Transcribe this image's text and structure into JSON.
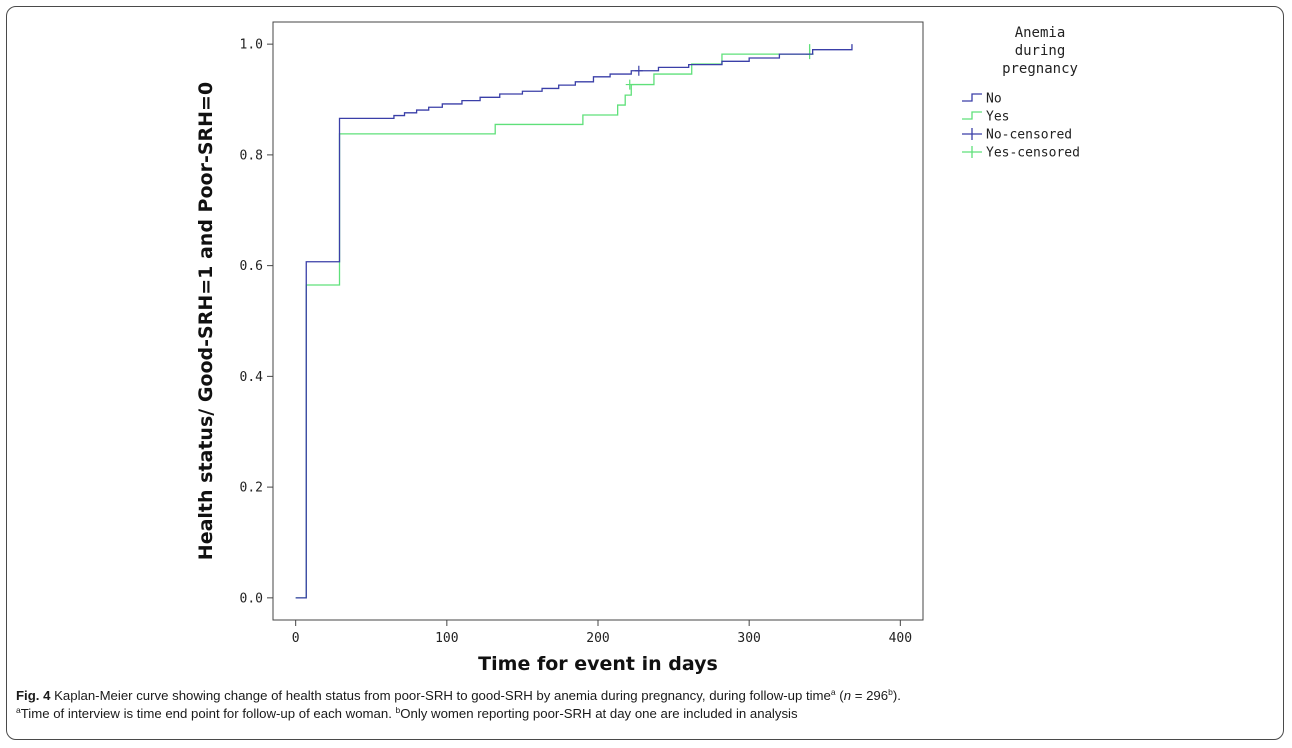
{
  "chart_data": {
    "type": "line",
    "subtype": "kaplan-meier step",
    "xlabel": "Time for event in days",
    "ylabel": "Health status/ Good-SRH=1 and Poor-SRH=0",
    "xlim": [
      -15,
      415
    ],
    "ylim": [
      -0.04,
      1.04
    ],
    "xticks": [
      0,
      100,
      200,
      300,
      400
    ],
    "yticks": [
      0.0,
      0.2,
      0.4,
      0.6,
      0.8,
      1.0
    ],
    "xtick_labels": [
      "0",
      "100",
      "200",
      "300",
      "400"
    ],
    "ytick_labels": [
      "0.0",
      "0.2",
      "0.4",
      "0.6",
      "0.8",
      "1.0"
    ],
    "legend": {
      "title": [
        "Anemia",
        "during",
        "pregnancy"
      ],
      "placement": "top-right outside plot",
      "entries": [
        {
          "label": "No",
          "kind": "line",
          "color": "#3a3fa8"
        },
        {
          "label": "Yes",
          "kind": "line",
          "color": "#5fe07a"
        },
        {
          "label": "No-censored",
          "kind": "censor",
          "color": "#3a3fa8"
        },
        {
          "label": "Yes-censored",
          "kind": "censor",
          "color": "#5fe07a"
        }
      ]
    },
    "series": [
      {
        "name": "No",
        "color": "#3a3fa8",
        "x": [
          0,
          7,
          29,
          65,
          72,
          80,
          88,
          97,
          110,
          122,
          135,
          150,
          163,
          174,
          185,
          197,
          208,
          222,
          240,
          260,
          282,
          300,
          320,
          342,
          368
        ],
        "y": [
          0.0,
          0.607,
          0.866,
          0.871,
          0.876,
          0.881,
          0.886,
          0.892,
          0.898,
          0.904,
          0.91,
          0.915,
          0.92,
          0.926,
          0.932,
          0.941,
          0.946,
          0.952,
          0.958,
          0.963,
          0.969,
          0.975,
          0.982,
          0.99,
          1.0
        ],
        "censored": [
          [
            227,
            0.952
          ]
        ]
      },
      {
        "name": "Yes",
        "color": "#5fe07a",
        "x": [
          0,
          7,
          29,
          132,
          190,
          213,
          218,
          222,
          237,
          262,
          282,
          340
        ],
        "y": [
          0.0,
          0.565,
          0.838,
          0.855,
          0.872,
          0.89,
          0.908,
          0.927,
          0.946,
          0.964,
          0.982,
          1.0
        ],
        "censored": [
          [
            221,
            0.927
          ],
          [
            340,
            0.982
          ]
        ]
      }
    ]
  },
  "caption": {
    "label": "Fig. 4",
    "text1": "Kaplan-Meier curve showing change of health status from poor-SRH to good-SRH by anemia during pregnancy, during follow-up time",
    "sup_a": "a",
    "text2": "(",
    "n_italic": "n",
    "text3": "= 296",
    "sup_b": "b",
    "text4": ").",
    "line2_sup_a": "a",
    "line2_text1": "Time of interview is time end point for follow-up of each woman.",
    "line2_sup_b": "b",
    "line2_text2": "Only women reporting poor-SRH at day one are included in analysis"
  }
}
